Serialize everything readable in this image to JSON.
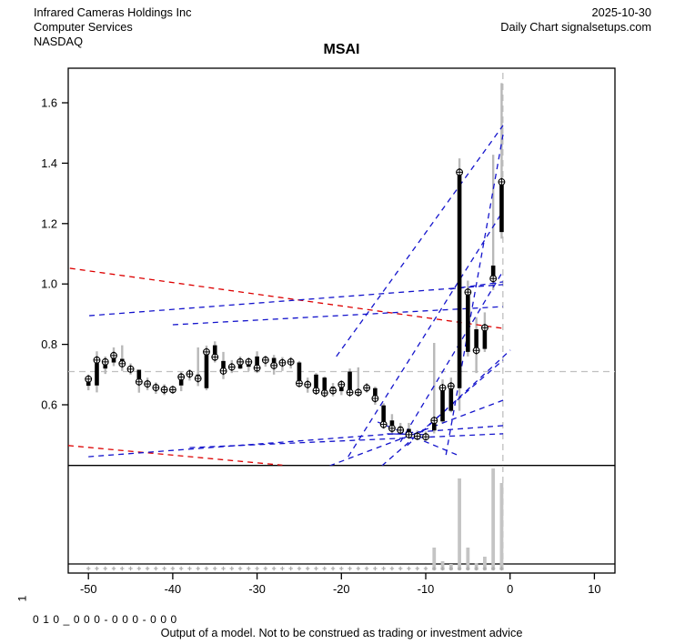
{
  "header": {
    "company": "Infrared Cameras Holdings Inc",
    "sector": "Computer Services",
    "exchange": "NASDAQ",
    "date": "2025-10-30",
    "chart_label": "Daily Chart signalsetups.com"
  },
  "title": "MSAI",
  "footer": {
    "panel_label": "1",
    "model_code": "0 1 0 _ 0 0 0 - 0 0 0 - 0 0 0",
    "disclaimer": "Output of a model. Not to be construed as trading or investment advice"
  },
  "colors": {
    "frame": "#000000",
    "wick": "#b8b8b8",
    "body": "#000000",
    "marker_fill": "#ffffff",
    "trend_blue": "#1414cc",
    "trend_red": "#dd0000",
    "ref_gray": "#c0c0c0",
    "volume_bar": "#c4c4c4",
    "dot_gray": "#ababab"
  },
  "chart_data": {
    "type": "candlestick+volume",
    "x_axis": {
      "ticks": [
        -50,
        -40,
        -30,
        -20,
        -10,
        0,
        10
      ],
      "unit": "days"
    },
    "y_axis": {
      "ticks": [
        0.6,
        0.8,
        1.0,
        1.2,
        1.4,
        1.6
      ],
      "unit": "price"
    },
    "reference_lines": {
      "hline_price": 0.71,
      "vline_day": -0.85
    },
    "candles": [
      {
        "x": -50,
        "o": 0.663,
        "h": 0.7,
        "l": 0.648,
        "c": 0.685
      },
      {
        "x": -49,
        "o": 0.664,
        "h": 0.777,
        "l": 0.641,
        "c": 0.748
      },
      {
        "x": -48,
        "o": 0.72,
        "h": 0.76,
        "l": 0.702,
        "c": 0.742
      },
      {
        "x": -47,
        "o": 0.74,
        "h": 0.79,
        "l": 0.728,
        "c": 0.763
      },
      {
        "x": -46,
        "o": 0.752,
        "h": 0.797,
        "l": 0.712,
        "c": 0.736
      },
      {
        "x": -45,
        "o": 0.726,
        "h": 0.737,
        "l": 0.7,
        "c": 0.718
      },
      {
        "x": -44,
        "o": 0.716,
        "h": 0.716,
        "l": 0.64,
        "c": 0.676
      },
      {
        "x": -43,
        "o": 0.676,
        "h": 0.69,
        "l": 0.648,
        "c": 0.669
      },
      {
        "x": -42,
        "o": 0.666,
        "h": 0.674,
        "l": 0.636,
        "c": 0.657
      },
      {
        "x": -41,
        "o": 0.655,
        "h": 0.668,
        "l": 0.632,
        "c": 0.65
      },
      {
        "x": -40,
        "o": 0.65,
        "h": 0.662,
        "l": 0.638,
        "c": 0.65
      },
      {
        "x": -39,
        "o": 0.664,
        "h": 0.71,
        "l": 0.645,
        "c": 0.692
      },
      {
        "x": -38,
        "o": 0.694,
        "h": 0.717,
        "l": 0.68,
        "c": 0.702
      },
      {
        "x": -37,
        "o": 0.7,
        "h": 0.79,
        "l": 0.662,
        "c": 0.687
      },
      {
        "x": -36,
        "o": 0.655,
        "h": 0.796,
        "l": 0.648,
        "c": 0.775
      },
      {
        "x": -35,
        "o": 0.797,
        "h": 0.81,
        "l": 0.74,
        "c": 0.758
      },
      {
        "x": -34,
        "o": 0.745,
        "h": 0.775,
        "l": 0.685,
        "c": 0.712
      },
      {
        "x": -33,
        "o": 0.73,
        "h": 0.748,
        "l": 0.705,
        "c": 0.725
      },
      {
        "x": -32,
        "o": 0.72,
        "h": 0.76,
        "l": 0.718,
        "c": 0.742
      },
      {
        "x": -31,
        "o": 0.726,
        "h": 0.756,
        "l": 0.712,
        "c": 0.742
      },
      {
        "x": -30,
        "o": 0.76,
        "h": 0.777,
        "l": 0.705,
        "c": 0.722
      },
      {
        "x": -29,
        "o": 0.742,
        "h": 0.762,
        "l": 0.726,
        "c": 0.748
      },
      {
        "x": -28,
        "o": 0.755,
        "h": 0.765,
        "l": 0.7,
        "c": 0.73
      },
      {
        "x": -27,
        "o": 0.742,
        "h": 0.758,
        "l": 0.712,
        "c": 0.739
      },
      {
        "x": -26,
        "o": 0.742,
        "h": 0.758,
        "l": 0.72,
        "c": 0.742
      },
      {
        "x": -25,
        "o": 0.74,
        "h": 0.745,
        "l": 0.66,
        "c": 0.671
      },
      {
        "x": -24,
        "o": 0.676,
        "h": 0.69,
        "l": 0.64,
        "c": 0.667
      },
      {
        "x": -23,
        "o": 0.7,
        "h": 0.705,
        "l": 0.635,
        "c": 0.647
      },
      {
        "x": -22,
        "o": 0.69,
        "h": 0.694,
        "l": 0.625,
        "c": 0.639
      },
      {
        "x": -21,
        "o": 0.66,
        "h": 0.672,
        "l": 0.628,
        "c": 0.647
      },
      {
        "x": -20,
        "o": 0.645,
        "h": 0.68,
        "l": 0.632,
        "c": 0.667
      },
      {
        "x": -19,
        "o": 0.71,
        "h": 0.72,
        "l": 0.63,
        "c": 0.641
      },
      {
        "x": -18,
        "o": 0.645,
        "h": 0.724,
        "l": 0.628,
        "c": 0.641
      },
      {
        "x": -17,
        "o": 0.66,
        "h": 0.672,
        "l": 0.64,
        "c": 0.656
      },
      {
        "x": -16,
        "o": 0.655,
        "h": 0.66,
        "l": 0.6,
        "c": 0.621
      },
      {
        "x": -15,
        "o": 0.598,
        "h": 0.605,
        "l": 0.52,
        "c": 0.535
      },
      {
        "x": -14,
        "o": 0.548,
        "h": 0.569,
        "l": 0.5,
        "c": 0.522
      },
      {
        "x": -13,
        "o": 0.528,
        "h": 0.54,
        "l": 0.505,
        "c": 0.516
      },
      {
        "x": -12,
        "o": 0.52,
        "h": 0.54,
        "l": 0.49,
        "c": 0.501
      },
      {
        "x": -11,
        "o": 0.505,
        "h": 0.515,
        "l": 0.488,
        "c": 0.496
      },
      {
        "x": -10,
        "o": 0.5,
        "h": 0.512,
        "l": 0.486,
        "c": 0.494
      },
      {
        "x": -9,
        "o": 0.515,
        "h": 0.805,
        "l": 0.505,
        "c": 0.548
      },
      {
        "x": -8,
        "o": 0.545,
        "h": 0.684,
        "l": 0.538,
        "c": 0.656
      },
      {
        "x": -7,
        "o": 0.58,
        "h": 0.69,
        "l": 0.575,
        "c": 0.662
      },
      {
        "x": -6,
        "o": 0.655,
        "h": 1.416,
        "l": 0.58,
        "c": 1.37
      },
      {
        "x": -5,
        "o": 0.775,
        "h": 1.011,
        "l": 0.76,
        "c": 0.973
      },
      {
        "x": -4,
        "o": 0.85,
        "h": 0.89,
        "l": 0.705,
        "c": 0.78
      },
      {
        "x": -3,
        "o": 0.785,
        "h": 0.906,
        "l": 0.775,
        "c": 0.855
      },
      {
        "x": -2,
        "o": 1.061,
        "h": 1.428,
        "l": 0.98,
        "c": 1.018
      },
      {
        "x": -1,
        "o": 1.172,
        "h": 1.665,
        "l": 1.15,
        "c": 1.338
      }
    ],
    "volume_bars": [
      {
        "x": -9,
        "h": 25
      },
      {
        "x": -8,
        "h": 10
      },
      {
        "x": -7,
        "h": 7
      },
      {
        "x": -6,
        "h": 101
      },
      {
        "x": -5,
        "h": 25
      },
      {
        "x": -4,
        "h": 8
      },
      {
        "x": -3,
        "h": 15
      },
      {
        "x": -2,
        "h": 112
      },
      {
        "x": -1,
        "h": 96
      }
    ],
    "trendlines": [
      {
        "color": "red",
        "style": "dashed",
        "points": [
          [
            -52.2,
            1.052
          ],
          [
            -0.83,
            0.853
          ]
        ]
      },
      {
        "color": "red",
        "style": "dashed",
        "points": [
          [
            -52.4,
            0.465
          ],
          [
            -27.0,
            0.4
          ]
        ]
      },
      {
        "color": "blue",
        "style": "dashed",
        "points": [
          [
            -49.9,
            0.895
          ],
          [
            -0.83,
            0.998
          ]
        ]
      },
      {
        "color": "blue",
        "style": "dashed",
        "points": [
          [
            -40.0,
            0.865
          ],
          [
            -0.83,
            0.925
          ]
        ]
      },
      {
        "color": "blue",
        "style": "dashed",
        "points": [
          [
            -20.6,
            0.76
          ],
          [
            -0.83,
            1.525
          ]
        ]
      },
      {
        "color": "blue",
        "style": "dashed",
        "points": [
          [
            -19.2,
            0.428
          ],
          [
            -0.83,
            1.242
          ]
        ]
      },
      {
        "color": "blue",
        "style": "dashed",
        "points": [
          [
            -13.0,
            0.477
          ],
          [
            -0.83,
            1.043
          ]
        ]
      },
      {
        "color": "blue",
        "style": "dashed",
        "points": [
          [
            -12.2,
            0.465
          ],
          [
            0.03,
            0.781
          ]
        ]
      },
      {
        "color": "blue",
        "style": "dashed",
        "points": [
          [
            -50.0,
            0.428
          ],
          [
            -0.83,
            0.531
          ]
        ]
      },
      {
        "color": "blue",
        "style": "dashed",
        "points": [
          [
            -38.0,
            0.458
          ],
          [
            -0.83,
            0.504
          ]
        ]
      },
      {
        "color": "blue",
        "style": "dashed",
        "points": [
          [
            -21.4,
            0.398
          ],
          [
            -0.83,
            0.615
          ]
        ]
      },
      {
        "color": "blue",
        "style": "dashed",
        "points": [
          [
            -15.2,
            0.398
          ],
          [
            -0.83,
            0.748
          ]
        ]
      },
      {
        "color": "blue",
        "style": "dashed",
        "points": [
          [
            -7.6,
            0.434
          ],
          [
            -0.83,
            1.495
          ]
        ]
      },
      {
        "color": "blue",
        "style": "dashed",
        "points": [
          [
            -7.1,
            0.983
          ],
          [
            -0.83,
            1.007
          ]
        ]
      },
      {
        "color": "blue",
        "style": "dashed",
        "points": [
          [
            -15.7,
            0.543
          ],
          [
            -6.0,
            0.431
          ]
        ]
      },
      {
        "color": "blue",
        "style": "solid",
        "points": [
          [
            -14.6,
            0.504
          ],
          [
            -9.8,
            0.501
          ]
        ]
      }
    ]
  }
}
